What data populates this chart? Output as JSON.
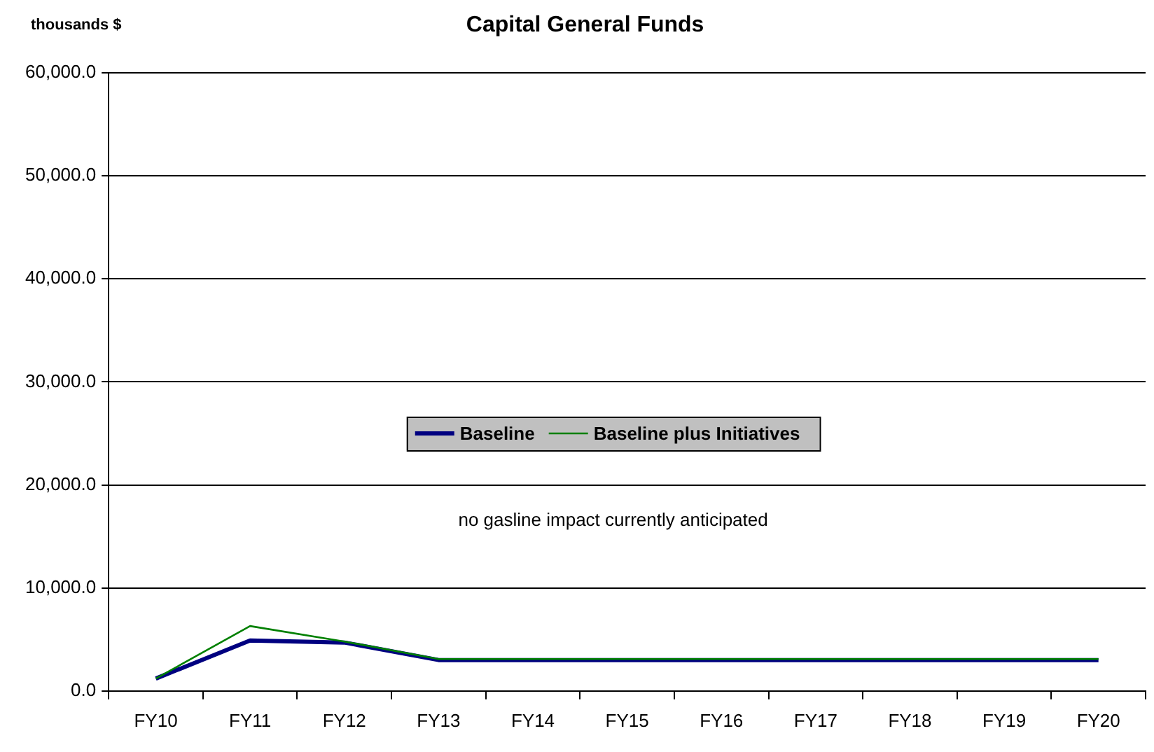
{
  "chart_data": {
    "type": "line",
    "title": "Capital General Funds",
    "ylabel": "thousands $",
    "annotations": [
      "no gasline impact currently anticipated"
    ],
    "categories": [
      "FY10",
      "FY11",
      "FY12",
      "FY13",
      "FY14",
      "FY15",
      "FY16",
      "FY17",
      "FY18",
      "FY19",
      "FY20"
    ],
    "series": [
      {
        "name": "Baseline",
        "color": "#000080",
        "values": [
          1200,
          4900,
          4700,
          3000,
          3000,
          3000,
          3000,
          3000,
          3000,
          3000,
          3000
        ]
      },
      {
        "name": "Baseline plus Initiatives",
        "color": "#008000",
        "values": [
          1200,
          6300,
          4800,
          3100,
          3100,
          3100,
          3100,
          3100,
          3100,
          3100,
          3100
        ]
      }
    ],
    "ylim": [
      0,
      60000
    ],
    "yticks": [
      {
        "value": 0,
        "label": "0.0"
      },
      {
        "value": 10000,
        "label": "10,000.0"
      },
      {
        "value": 20000,
        "label": "20,000.0"
      },
      {
        "value": 30000,
        "label": "30,000.0"
      },
      {
        "value": 40000,
        "label": "40,000.0"
      },
      {
        "value": 50000,
        "label": "50,000.0"
      },
      {
        "value": 60000,
        "label": "60,000.0"
      }
    ],
    "grid": "y",
    "legend": "center",
    "marker": "none",
    "line_style": "solid"
  }
}
